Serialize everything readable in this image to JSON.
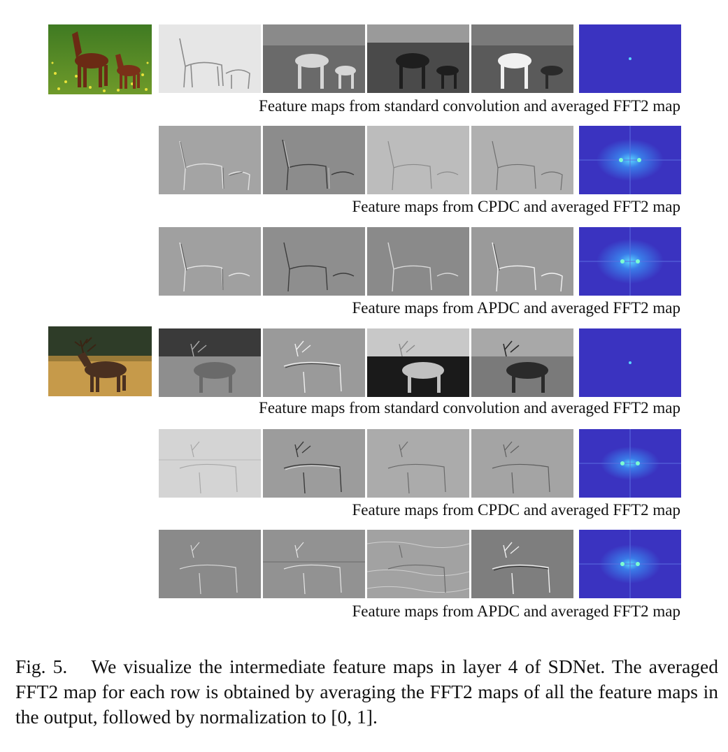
{
  "figure": {
    "label": "Fig. 5.",
    "caption": "We visualize the intermediate feature maps in layer 4 of SDNet. The averaged FFT2 map for each row is obtained by averaging the FFT2 maps of all the feature maps in the output, followed by normalization to [0, 1]."
  },
  "groups": [
    {
      "input_image": "photo of a brown horse and foal standing on a green field with yellow flowers",
      "rows": [
        {
          "caption": "Feature maps from standard convolution and averaged FFT2 map",
          "tiles": [
            "feature map 1",
            "feature map 2",
            "feature map 3",
            "feature map 4"
          ],
          "fft_map": "averaged FFT2 map"
        },
        {
          "caption": "Feature maps from CPDC and averaged FFT2 map",
          "tiles": [
            "feature map 1",
            "feature map 2",
            "feature map 3",
            "feature map 4"
          ],
          "fft_map": "averaged FFT2 map"
        },
        {
          "caption": "Feature maps from APDC and averaged FFT2 map",
          "tiles": [
            "feature map 1",
            "feature map 2",
            "feature map 3",
            "feature map 4"
          ],
          "fft_map": "averaged FFT2 map"
        }
      ]
    },
    {
      "input_image": "photo of an elk with large antlers standing in golden grass in front of a dark forest",
      "rows": [
        {
          "caption": "Feature maps from standard convolution and averaged FFT2 map",
          "tiles": [
            "feature map 1",
            "feature map 2",
            "feature map 3",
            "feature map 4"
          ],
          "fft_map": "averaged FFT2 map"
        },
        {
          "caption": "Feature maps from CPDC and averaged FFT2 map",
          "tiles": [
            "feature map 1",
            "feature map 2",
            "feature map 3",
            "feature map 4"
          ],
          "fft_map": "averaged FFT2 map"
        },
        {
          "caption": "Feature maps from APDC and averaged FFT2 map",
          "tiles": [
            "feature map 1",
            "feature map 2",
            "feature map 3",
            "feature map 4"
          ],
          "fft_map": "averaged FFT2 map"
        }
      ]
    }
  ],
  "colors": {
    "fft_background": "#3a33c0",
    "fft_glow": "#5ad6ff"
  }
}
